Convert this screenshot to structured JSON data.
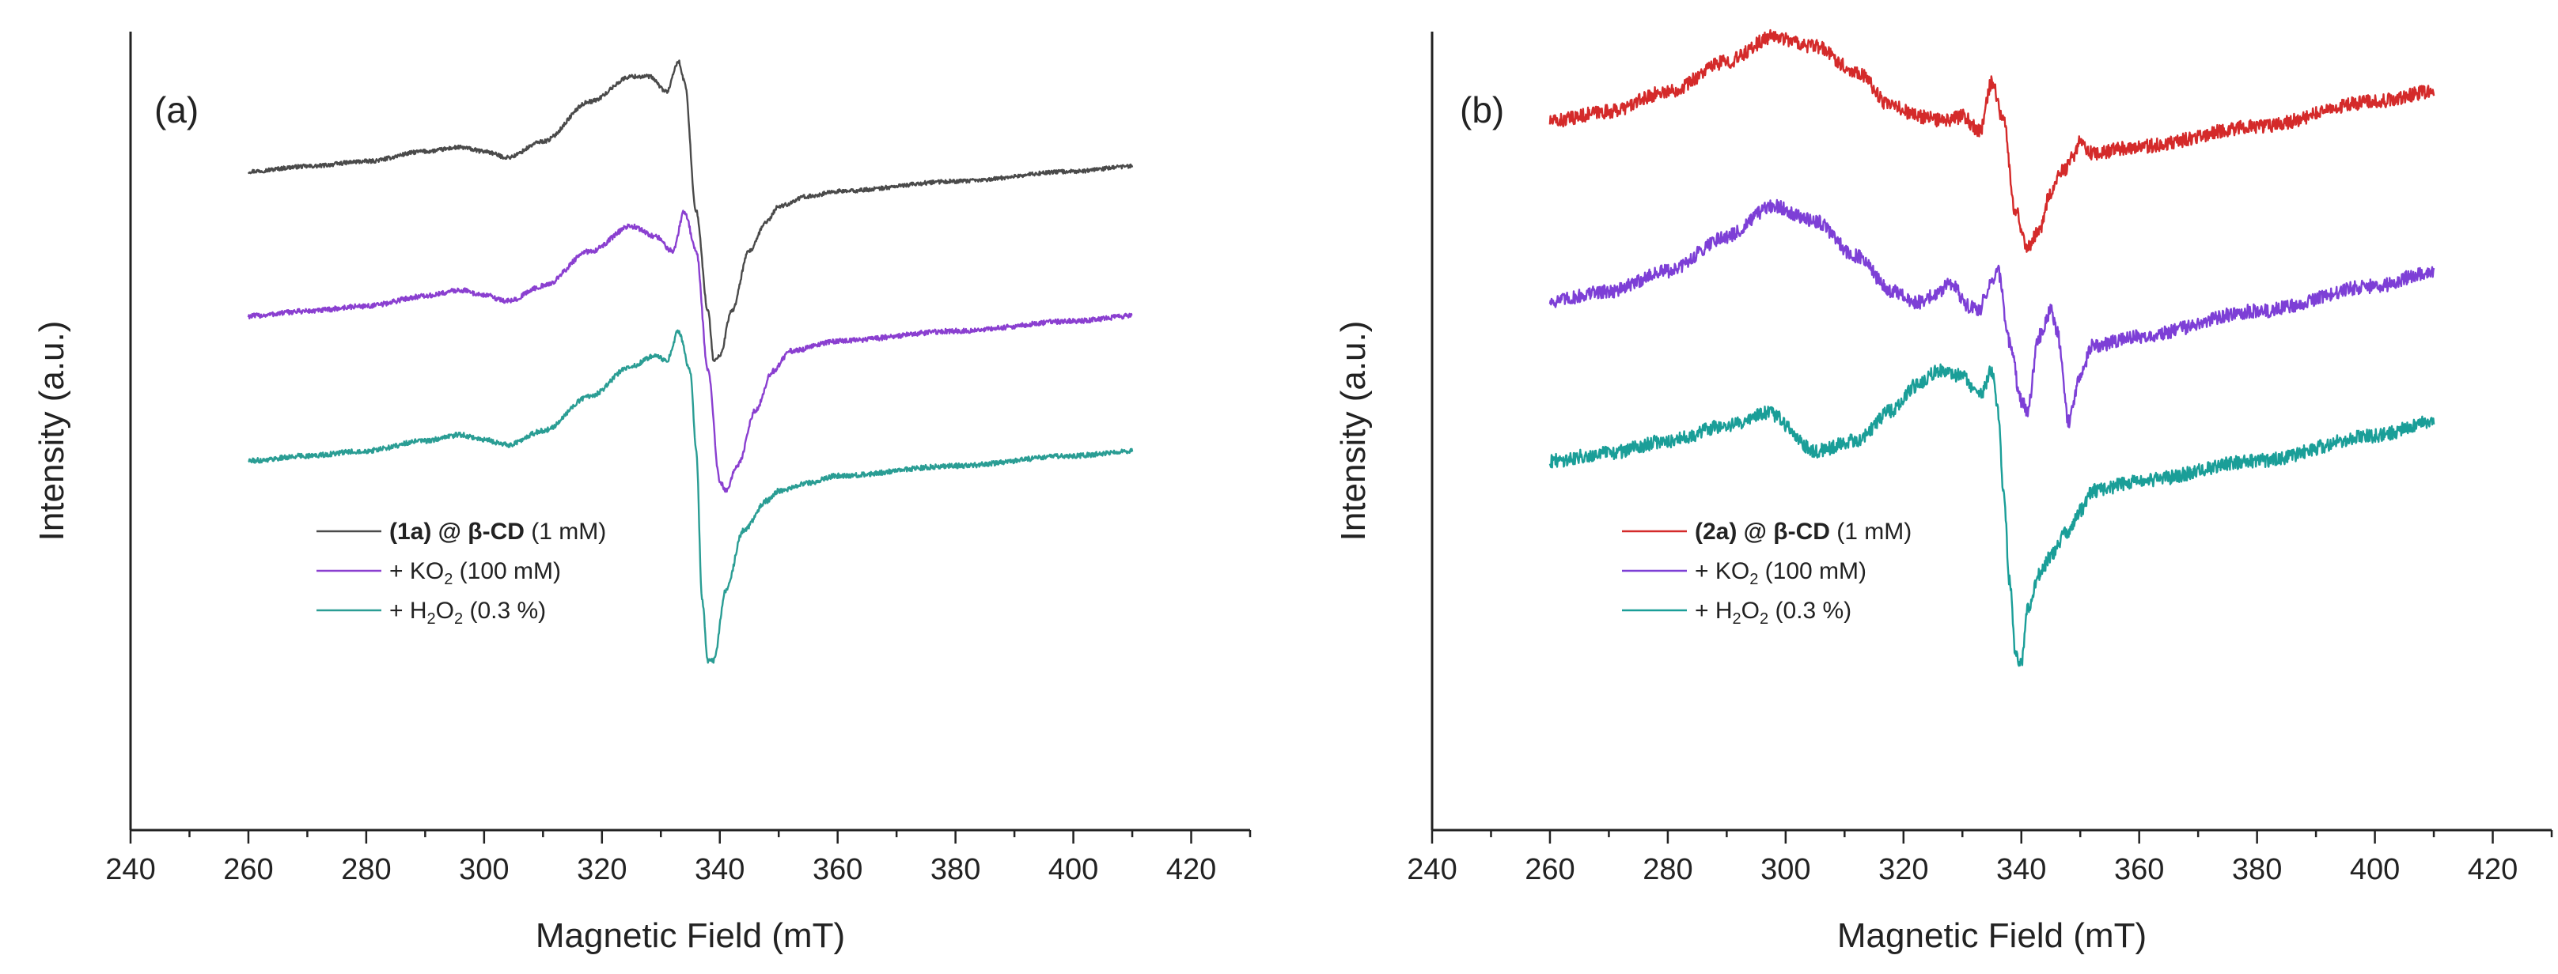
{
  "chart_data": [
    {
      "type": "line",
      "panel_label": "(a)",
      "xlabel": "Magnetic Field (mT)",
      "ylabel": "Intensity (a.u.)",
      "xlim": [
        240,
        430
      ],
      "ylim": [
        -100,
        700
      ],
      "xticks": [
        240,
        260,
        280,
        300,
        320,
        340,
        360,
        380,
        400,
        420
      ],
      "legend_position": "center-left",
      "series": [
        {
          "name": "(1a) @ β-CD (1 mM)",
          "legend_parts": [
            {
              "text": "(1a) @ β-CD",
              "bold": true
            },
            {
              "text": " (1 mM)"
            }
          ],
          "color": "#4a4a4a",
          "noise": 2,
          "x": [
            260,
            270,
            280,
            290,
            296,
            300,
            304,
            310,
            318,
            325,
            328,
            331,
            333,
            334,
            336,
            338,
            339,
            340,
            342,
            345,
            348,
            350,
            355,
            360,
            380,
            400,
            410
          ],
          "y": [
            560,
            565,
            570,
            580,
            584,
            580,
            574,
            590,
            630,
            655,
            655,
            640,
            670,
            650,
            520,
            420,
            370,
            375,
            420,
            480,
            510,
            525,
            535,
            540,
            550,
            560,
            565
          ]
        },
        {
          "name": "+ KO2 (100 mM)",
          "legend_parts": [
            {
              "text": "+ KO"
            },
            {
              "text": "2",
              "sub": true
            },
            {
              "text": " (100 mM)"
            }
          ],
          "color": "#8a3fd0",
          "noise": 2.5,
          "x": [
            260,
            270,
            280,
            290,
            296,
            300,
            304,
            310,
            318,
            325,
            329,
            332,
            334,
            336,
            338,
            340,
            341,
            343,
            346,
            349,
            352,
            360,
            380,
            400,
            410
          ],
          "y": [
            415,
            420,
            425,
            435,
            441,
            436,
            430,
            445,
            480,
            505,
            495,
            480,
            520,
            480,
            360,
            250,
            240,
            265,
            320,
            360,
            380,
            390,
            400,
            410,
            415
          ]
        },
        {
          "name": "+ H2O2 (0.3 %)",
          "legend_parts": [
            {
              "text": "+ H"
            },
            {
              "text": "2",
              "sub": true
            },
            {
              "text": "O"
            },
            {
              "text": "2",
              "sub": true
            },
            {
              "text": " (0.3 %)"
            }
          ],
          "color": "#2a9d94",
          "noise": 2.5,
          "x": [
            260,
            270,
            280,
            290,
            296,
            300,
            304,
            310,
            318,
            325,
            329,
            331,
            333,
            335,
            336,
            337,
            338,
            339,
            341,
            344,
            348,
            350,
            355,
            360,
            380,
            400,
            410
          ],
          "y": [
            270,
            275,
            280,
            290,
            296,
            291,
            286,
            300,
            335,
            365,
            375,
            370,
            400,
            360,
            280,
            130,
            70,
            70,
            140,
            200,
            230,
            240,
            248,
            255,
            265,
            275,
            280
          ]
        }
      ]
    },
    {
      "type": "line",
      "panel_label": "(b)",
      "xlabel": "Magnetic Field (mT)",
      "ylabel": "Intensity (a.u.)",
      "xlim": [
        240,
        430
      ],
      "ylim": [
        -100,
        700
      ],
      "xticks": [
        240,
        260,
        280,
        300,
        320,
        340,
        360,
        380,
        400,
        420
      ],
      "legend_position": "center-left",
      "series": [
        {
          "name": "(2a) @ β-CD (1 mM)",
          "legend_parts": [
            {
              "text": "(2a) @ β-CD",
              "bold": true
            },
            {
              "text": " (1 mM)"
            }
          ],
          "color": "#d42a2a",
          "noise": 7,
          "x": [
            260,
            270,
            280,
            290,
            298,
            305,
            312,
            318,
            323,
            327,
            330,
            333,
            335,
            337,
            339,
            341,
            343,
            345,
            347,
            349,
            350,
            352,
            360,
            380,
            400,
            410
          ],
          "y": [
            610,
            620,
            640,
            670,
            695,
            685,
            660,
            625,
            615,
            610,
            615,
            600,
            650,
            610,
            520,
            485,
            500,
            540,
            560,
            575,
            590,
            578,
            585,
            605,
            630,
            640
          ]
        },
        {
          "name": "+ KO2 (100 mM)",
          "legend_parts": [
            {
              "text": "+ KO"
            },
            {
              "text": "2",
              "sub": true
            },
            {
              "text": " (100 mM)"
            }
          ],
          "color": "#7d3fd6",
          "noise": 7,
          "x": [
            260,
            270,
            280,
            290,
            298,
            305,
            312,
            318,
            322,
            325,
            328,
            331,
            333,
            334,
            336,
            338,
            340,
            341,
            343,
            345,
            346,
            348,
            350,
            352,
            360,
            380,
            400,
            410
          ],
          "y": [
            430,
            440,
            460,
            495,
            525,
            510,
            475,
            440,
            428,
            435,
            448,
            425,
            420,
            440,
            460,
            390,
            330,
            320,
            395,
            420,
            400,
            310,
            355,
            385,
            395,
            420,
            445,
            460
          ]
        },
        {
          "name": "+ H2O2 (0.3 %)",
          "legend_parts": [
            {
              "text": "+ H"
            },
            {
              "text": "2",
              "sub": true
            },
            {
              "text": "O"
            },
            {
              "text": "2",
              "sub": true
            },
            {
              "text": " (0.3 %)"
            }
          ],
          "color": "#1a9e98",
          "noise": 7,
          "x": [
            260,
            270,
            280,
            290,
            297,
            305,
            312,
            318,
            322,
            326,
            330,
            333,
            335,
            336,
            337,
            338,
            339,
            340,
            341,
            343,
            345,
            348,
            350,
            352,
            360,
            380,
            400,
            410
          ],
          "y": [
            270,
            278,
            290,
            305,
            318,
            280,
            290,
            320,
            345,
            360,
            355,
            335,
            360,
            320,
            240,
            150,
            80,
            65,
            120,
            155,
            175,
            200,
            220,
            240,
            250,
            270,
            295,
            310
          ]
        }
      ]
    }
  ]
}
